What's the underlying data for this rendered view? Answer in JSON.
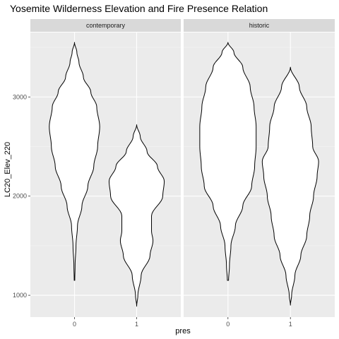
{
  "chart_data": {
    "type": "violin",
    "title": "Yosemite Wilderness Elevation and Fire Presence Relation",
    "xlabel": "pres",
    "ylabel": "LC20_Elev_220",
    "ylim": [
      780,
      3650
    ],
    "yticks": [
      1000,
      2000,
      3000
    ],
    "categories": [
      "0",
      "1"
    ],
    "grid": true,
    "colors": {
      "panel": "#ebebeb",
      "grid_major": "#ffffff",
      "strip": "#d9d9d9",
      "violin_fill": "#ffffff",
      "violin_outline": "#000000"
    },
    "panels": [
      {
        "label": "contemporary",
        "violins": [
          {
            "category": "0",
            "density": [
              [
                1150,
                0.01
              ],
              [
                1300,
                0.02
              ],
              [
                1500,
                0.05
              ],
              [
                1700,
                0.1
              ],
              [
                1900,
                0.25
              ],
              [
                2100,
                0.45
              ],
              [
                2300,
                0.65
              ],
              [
                2500,
                0.78
              ],
              [
                2700,
                0.85
              ],
              [
                2900,
                0.75
              ],
              [
                3050,
                0.55
              ],
              [
                3200,
                0.3
              ],
              [
                3350,
                0.15
              ],
              [
                3450,
                0.08
              ],
              [
                3550,
                0.0
              ]
            ]
          },
          {
            "category": "1",
            "density": [
              [
                890,
                0.0
              ],
              [
                1000,
                0.04
              ],
              [
                1200,
                0.15
              ],
              [
                1400,
                0.45
              ],
              [
                1550,
                0.55
              ],
              [
                1650,
                0.5
              ],
              [
                1800,
                0.5
              ],
              [
                2000,
                0.88
              ],
              [
                2150,
                0.93
              ],
              [
                2300,
                0.7
              ],
              [
                2450,
                0.35
              ],
              [
                2600,
                0.12
              ],
              [
                2720,
                0.0
              ]
            ]
          }
        ]
      },
      {
        "label": "historic",
        "violins": [
          {
            "category": "0",
            "density": [
              [
                1150,
                0.02
              ],
              [
                1300,
                0.05
              ],
              [
                1500,
                0.1
              ],
              [
                1700,
                0.25
              ],
              [
                1900,
                0.5
              ],
              [
                2100,
                0.8
              ],
              [
                2300,
                0.9
              ],
              [
                2500,
                0.95
              ],
              [
                2700,
                0.95
              ],
              [
                2900,
                0.88
              ],
              [
                3100,
                0.75
              ],
              [
                3300,
                0.5
              ],
              [
                3450,
                0.2
              ],
              [
                3550,
                0.0
              ]
            ]
          },
          {
            "category": "1",
            "density": [
              [
                900,
                0.0
              ],
              [
                1000,
                0.04
              ],
              [
                1200,
                0.15
              ],
              [
                1400,
                0.35
              ],
              [
                1600,
                0.55
              ],
              [
                1800,
                0.65
              ],
              [
                2000,
                0.78
              ],
              [
                2200,
                0.9
              ],
              [
                2350,
                0.95
              ],
              [
                2500,
                0.75
              ],
              [
                2700,
                0.7
              ],
              [
                2900,
                0.55
              ],
              [
                3100,
                0.3
              ],
              [
                3300,
                0.0
              ]
            ]
          }
        ]
      }
    ]
  }
}
